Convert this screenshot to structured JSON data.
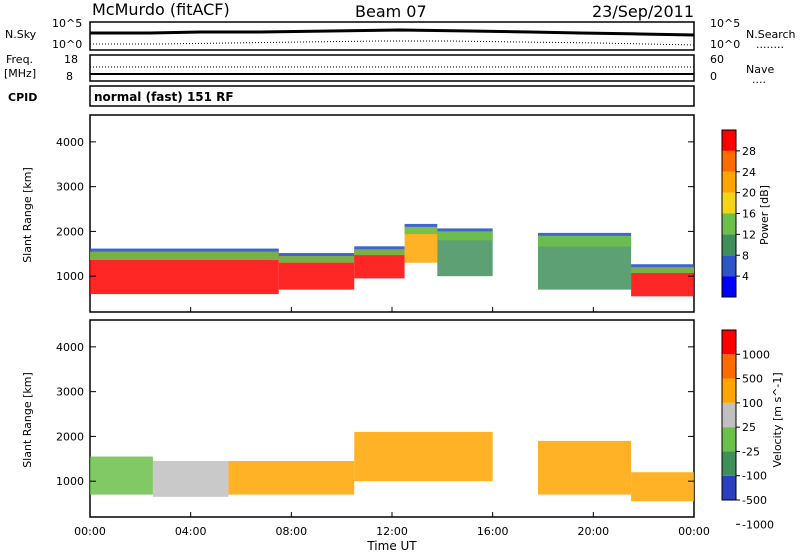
{
  "header": {
    "station": "McMurdo (fitACF)",
    "beam": "Beam 07",
    "date": "23/Sep/2011"
  },
  "noise_panel": {
    "left_label": "N.Sky",
    "right_label": "N.Search",
    "right_label_line": "........",
    "left_ticks": [
      "10^5",
      "10^0"
    ],
    "right_ticks": [
      "10^5",
      "10^0"
    ]
  },
  "freq_panel": {
    "left_label_1": "Freq.",
    "left_label_2": "[MHz]",
    "right_label": "Nave",
    "right_label_line": "....",
    "left_ticks": [
      "18",
      "8"
    ],
    "right_ticks": [
      "60",
      "0"
    ]
  },
  "cpid": {
    "label": "CPID",
    "value": "normal (fast) 151 RF"
  },
  "chart_data": [
    {
      "type": "heatmap",
      "quantity": "Power",
      "colorbar_label": "Power [dB]",
      "colorbar_ticks": [
        "28",
        "24",
        "20",
        "16",
        "12",
        "8",
        "4"
      ],
      "colorbar_colors": [
        "#0000ff",
        "#2b55c8",
        "#3f8f5a",
        "#6bc04a",
        "#f3d417",
        "#ffa500",
        "#ff6a00",
        "#ff0000"
      ],
      "ylabel": "Slant Range [km]",
      "yticks": [
        "4000",
        "3000",
        "2000",
        "1000"
      ],
      "ylim": [
        200,
        4600
      ],
      "xlim": [
        "00:00",
        "24:00"
      ],
      "regions": [
        {
          "t0": 0.0,
          "t1": 7.5,
          "r0": 600,
          "r1": 1550,
          "level": "strong"
        },
        {
          "t0": 7.5,
          "t1": 10.5,
          "r0": 700,
          "r1": 1450,
          "level": "strong"
        },
        {
          "t0": 10.5,
          "t1": 12.5,
          "r0": 950,
          "r1": 1600,
          "level": "strong"
        },
        {
          "t0": 12.5,
          "t1": 13.8,
          "r0": 1300,
          "r1": 2100,
          "level": "medium"
        },
        {
          "t0": 13.8,
          "t1": 16.0,
          "r0": 1000,
          "r1": 2000,
          "level": "weak"
        },
        {
          "t0": 17.8,
          "t1": 21.5,
          "r0": 700,
          "r1": 1900,
          "level": "weak"
        },
        {
          "t0": 21.5,
          "t1": 24.0,
          "r0": 550,
          "r1": 1200,
          "level": "strong"
        }
      ]
    },
    {
      "type": "heatmap",
      "quantity": "Velocity",
      "colorbar_label": "Velocity [m s^-1]",
      "colorbar_ticks": [
        "1000",
        "500",
        "100",
        "25",
        "-25",
        "-100",
        "-500",
        "-1000"
      ],
      "colorbar_colors": [
        "#2a3fbf",
        "#3f8f5a",
        "#6bc04a",
        "#c0c0c0",
        "#ffa500",
        "#ff6a00",
        "#ff0000"
      ],
      "ylabel": "Slant Range [km]",
      "yticks": [
        "4000",
        "3000",
        "2000",
        "1000"
      ],
      "ylim": [
        200,
        4600
      ],
      "xlim": [
        "00:00",
        "24:00"
      ],
      "regions": [
        {
          "t0": 0.0,
          "t1": 2.5,
          "r0": 700,
          "r1": 1550,
          "level": "green"
        },
        {
          "t0": 2.5,
          "t1": 5.5,
          "r0": 650,
          "r1": 1450,
          "level": "mixed"
        },
        {
          "t0": 5.5,
          "t1": 10.5,
          "r0": 700,
          "r1": 1450,
          "level": "orange"
        },
        {
          "t0": 10.5,
          "t1": 16.0,
          "r0": 1000,
          "r1": 2100,
          "level": "orange"
        },
        {
          "t0": 17.8,
          "t1": 21.5,
          "r0": 700,
          "r1": 1900,
          "level": "orange"
        },
        {
          "t0": 21.5,
          "t1": 24.0,
          "r0": 550,
          "r1": 1200,
          "level": "orange"
        }
      ]
    }
  ],
  "x_axis": {
    "ticks": [
      "00:00",
      "04:00",
      "08:00",
      "12:00",
      "16:00",
      "20:00",
      "00:00"
    ],
    "label": "Time UT"
  }
}
